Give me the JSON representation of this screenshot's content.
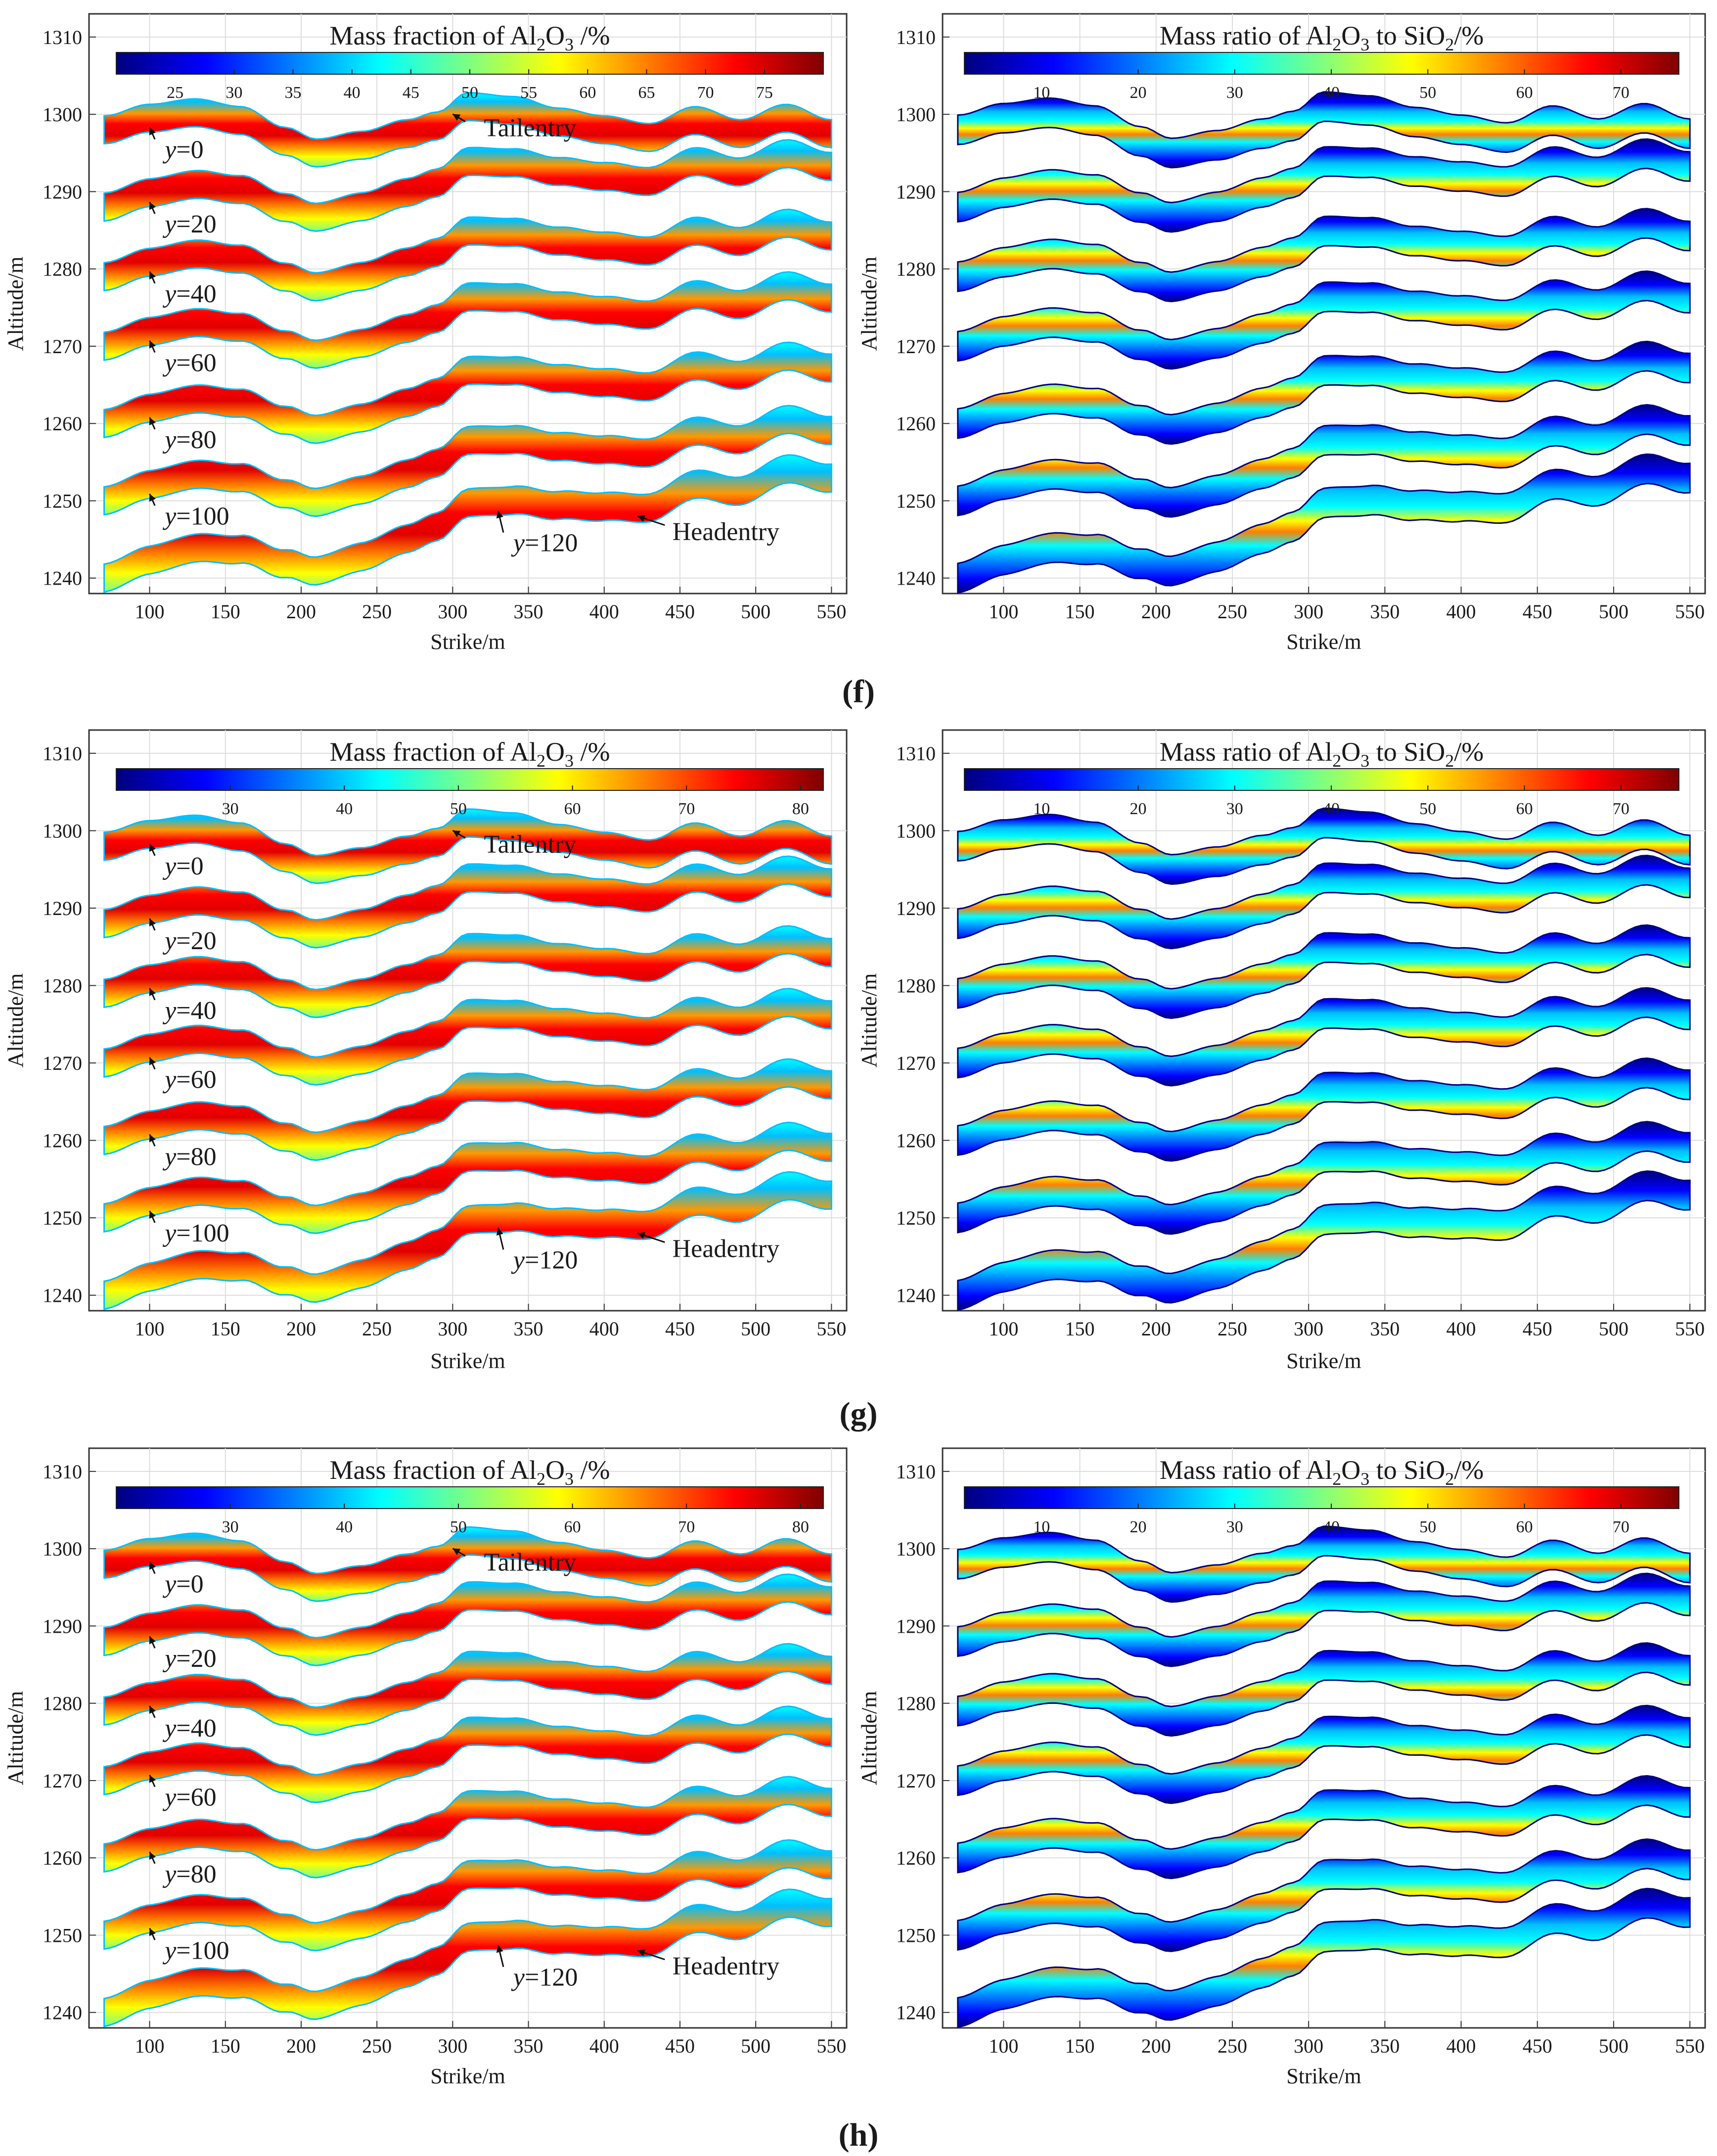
{
  "figure": {
    "panel_labels": [
      "(f)",
      "(g)",
      "(h)"
    ]
  },
  "colors": {
    "jet": [
      "#00007f",
      "#0000ff",
      "#007fff",
      "#00ffff",
      "#7fff7f",
      "#ffff00",
      "#ff7f00",
      "#ff0000",
      "#7f0000"
    ],
    "grid": "#dddddd",
    "axis": "#333333"
  },
  "chart_data": [
    {
      "type": "heatmap",
      "panel": "(f)",
      "side": "left",
      "title": "Mass fraction of Al2O3 /%",
      "title_parts": {
        "pre": "Mass fraction of Al",
        "s1": "2",
        "mid": "O",
        "s2": "3",
        "post": " /%"
      },
      "colorbar_ticks": [
        25,
        30,
        35,
        40,
        45,
        50,
        55,
        60,
        65,
        70,
        75
      ],
      "clim": [
        20,
        80
      ],
      "xlabel": "Strike/m",
      "ylabel": "Altitude/m",
      "xlim": [
        60,
        560
      ],
      "ylim": [
        1238,
        1313
      ],
      "xticks": [
        100,
        150,
        200,
        250,
        300,
        350,
        400,
        450,
        500,
        550
      ],
      "yticks": [
        1240,
        1250,
        1260,
        1270,
        1280,
        1290,
        1300,
        1310
      ],
      "bands": [
        {
          "label": "y=0",
          "y": 0
        },
        {
          "label": "y=20",
          "y": 20
        },
        {
          "label": "y=40",
          "y": 40
        },
        {
          "label": "y=60",
          "y": 60
        },
        {
          "label": "y=80",
          "y": 80
        },
        {
          "label": "y=100",
          "y": 100
        },
        {
          "label": "y=120",
          "y": 120
        }
      ],
      "annotations": [
        "Tailentry",
        "Headentry"
      ]
    },
    {
      "type": "heatmap",
      "panel": "(f)",
      "side": "right",
      "title": "Mass ratio of Al2O3 to SiO2/%",
      "title_parts": {
        "pre": "Mass ratio of Al",
        "s1": "2",
        "mid": "O",
        "s2": "3",
        "mid2": " to SiO",
        "s3": "2",
        "post": "/%"
      },
      "colorbar_ticks": [
        10,
        20,
        30,
        40,
        50,
        60,
        70
      ],
      "clim": [
        2,
        76
      ],
      "xlabel": "Strike/m",
      "ylabel": "Altitude/m",
      "xlim": [
        60,
        560
      ],
      "ylim": [
        1238,
        1313
      ],
      "xticks": [
        100,
        150,
        200,
        250,
        300,
        350,
        400,
        450,
        500,
        550
      ],
      "yticks": [
        1240,
        1250,
        1260,
        1270,
        1280,
        1290,
        1300,
        1310
      ],
      "bands": [
        {
          "y": 0
        },
        {
          "y": 20
        },
        {
          "y": 40
        },
        {
          "y": 60
        },
        {
          "y": 80
        },
        {
          "y": 100
        },
        {
          "y": 120
        }
      ]
    },
    {
      "type": "heatmap",
      "panel": "(g)",
      "side": "left",
      "title": "Mass fraction of Al2O3 /%",
      "title_parts": {
        "pre": "Mass fraction of Al",
        "s1": "2",
        "mid": "O",
        "s2": "3",
        "post": " /%"
      },
      "colorbar_ticks": [
        30,
        40,
        50,
        60,
        70,
        80
      ],
      "clim": [
        20,
        82
      ],
      "xlabel": "Strike/m",
      "ylabel": "Altitude/m",
      "xlim": [
        60,
        560
      ],
      "ylim": [
        1238,
        1313
      ],
      "xticks": [
        100,
        150,
        200,
        250,
        300,
        350,
        400,
        450,
        500,
        550
      ],
      "yticks": [
        1240,
        1250,
        1260,
        1270,
        1280,
        1290,
        1300,
        1310
      ],
      "bands": [
        {
          "label": "y=0",
          "y": 0
        },
        {
          "label": "y=20",
          "y": 20
        },
        {
          "label": "y=40",
          "y": 40
        },
        {
          "label": "y=60",
          "y": 60
        },
        {
          "label": "y=80",
          "y": 80
        },
        {
          "label": "y=100",
          "y": 100
        },
        {
          "label": "y=120",
          "y": 120
        }
      ],
      "annotations": [
        "Tailentry",
        "Headentry"
      ]
    },
    {
      "type": "heatmap",
      "panel": "(g)",
      "side": "right",
      "title": "Mass ratio of Al2O3 to SiO2/%",
      "title_parts": {
        "pre": "Mass ratio of Al",
        "s1": "2",
        "mid": "O",
        "s2": "3",
        "mid2": " to SiO",
        "s3": "2",
        "post": "/%"
      },
      "colorbar_ticks": [
        10,
        20,
        30,
        40,
        50,
        60,
        70
      ],
      "clim": [
        2,
        76
      ],
      "xlabel": "Strike/m",
      "ylabel": "Altitude/m",
      "xlim": [
        60,
        560
      ],
      "ylim": [
        1238,
        1313
      ],
      "xticks": [
        100,
        150,
        200,
        250,
        300,
        350,
        400,
        450,
        500,
        550
      ],
      "yticks": [
        1240,
        1250,
        1260,
        1270,
        1280,
        1290,
        1300,
        1310
      ],
      "bands": [
        {
          "y": 0
        },
        {
          "y": 20
        },
        {
          "y": 40
        },
        {
          "y": 60
        },
        {
          "y": 80
        },
        {
          "y": 100
        },
        {
          "y": 120
        }
      ]
    },
    {
      "type": "heatmap",
      "panel": "(h)",
      "side": "left",
      "title": "Mass fraction of Al2O3 /%",
      "title_parts": {
        "pre": "Mass fraction of Al",
        "s1": "2",
        "mid": "O",
        "s2": "3",
        "post": " /%"
      },
      "colorbar_ticks": [
        30,
        40,
        50,
        60,
        70,
        80
      ],
      "clim": [
        20,
        82
      ],
      "xlabel": "Strike/m",
      "ylabel": "Altitude/m",
      "xlim": [
        60,
        560
      ],
      "ylim": [
        1238,
        1313
      ],
      "xticks": [
        100,
        150,
        200,
        250,
        300,
        350,
        400,
        450,
        500,
        550
      ],
      "yticks": [
        1240,
        1250,
        1260,
        1270,
        1280,
        1290,
        1300,
        1310
      ],
      "bands": [
        {
          "label": "y=0",
          "y": 0
        },
        {
          "label": "y=20",
          "y": 20
        },
        {
          "label": "y=40",
          "y": 40
        },
        {
          "label": "y=60",
          "y": 60
        },
        {
          "label": "y=80",
          "y": 80
        },
        {
          "label": "y=100",
          "y": 100
        },
        {
          "label": "y=120",
          "y": 120
        }
      ],
      "annotations": [
        "Tailentry",
        "Headentry"
      ]
    },
    {
      "type": "heatmap",
      "panel": "(h)",
      "side": "right",
      "title": "Mass ratio of Al2O3 to SiO2/%",
      "title_parts": {
        "pre": "Mass ratio of Al",
        "s1": "2",
        "mid": "O",
        "s2": "3",
        "mid2": " to SiO",
        "s3": "2",
        "post": "/%"
      },
      "colorbar_ticks": [
        10,
        20,
        30,
        40,
        50,
        60,
        70
      ],
      "clim": [
        2,
        76
      ],
      "xlabel": "Strike/m",
      "ylabel": "Altitude/m",
      "xlim": [
        60,
        560
      ],
      "ylim": [
        1238,
        1313
      ],
      "xticks": [
        100,
        150,
        200,
        250,
        300,
        350,
        400,
        450,
        500,
        550
      ],
      "yticks": [
        1240,
        1250,
        1260,
        1270,
        1280,
        1290,
        1300,
        1310
      ],
      "bands": [
        {
          "y": 0
        },
        {
          "y": 20
        },
        {
          "y": 40
        },
        {
          "y": 60
        },
        {
          "y": 80
        },
        {
          "y": 100
        },
        {
          "y": 120
        }
      ]
    }
  ],
  "seam_profile": {
    "strike": [
      70,
      100,
      130,
      160,
      190,
      210,
      240,
      270,
      290,
      310,
      340,
      370,
      400,
      430,
      460,
      490,
      520,
      550
    ],
    "altitude_offset": [
      0,
      1.5,
      2.2,
      1.2,
      -1.5,
      -3.0,
      -2.0,
      -0.5,
      0.5,
      3.0,
      2.5,
      1.0,
      0.0,
      -1.0,
      1.2,
      -0.5,
      1.5,
      -0.5
    ]
  },
  "band_base_altitude": [
    1298,
    1288,
    1279,
    1270,
    1260,
    1250,
    1240
  ],
  "band_trend": [
    0.0,
    0.012,
    0.012,
    0.014,
    0.016,
    0.02,
    0.028
  ]
}
